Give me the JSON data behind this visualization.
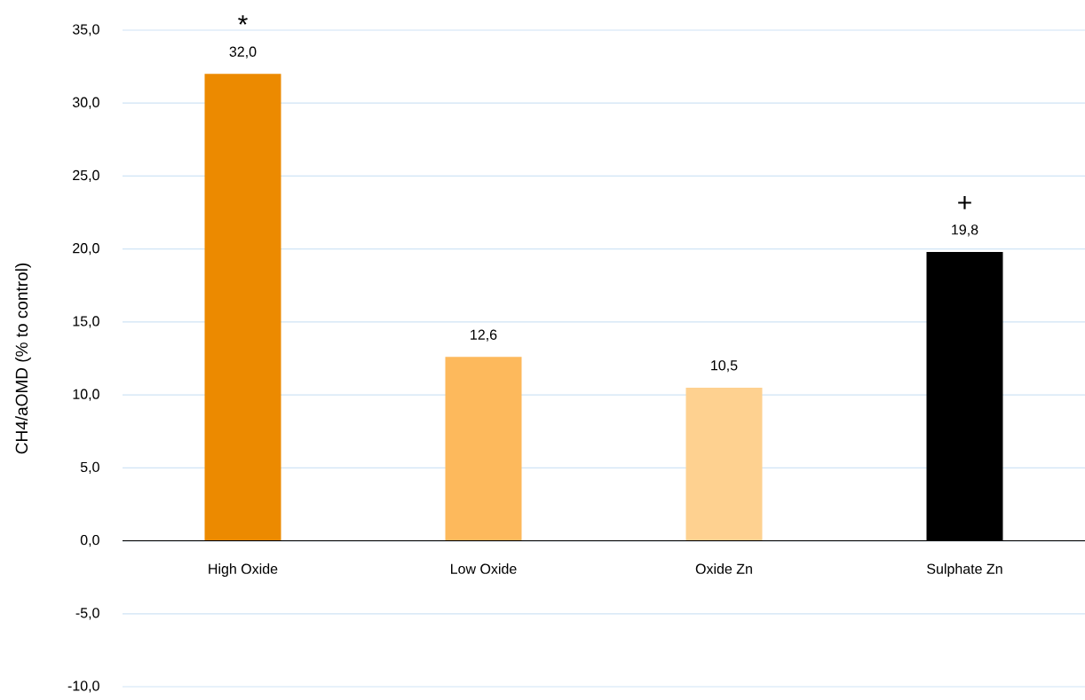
{
  "chart_data": {
    "type": "bar",
    "ylabel": "CH4/aOMD (% to control)",
    "categories": [
      "High Oxide",
      "Low Oxide",
      "Oxide Zn",
      "Sulphate Zn"
    ],
    "values": [
      32.0,
      12.6,
      10.5,
      19.8
    ],
    "colors": [
      "#ec8a00",
      "#fdb95c",
      "#fed190",
      "#000000"
    ],
    "value_labels": [
      "32,0",
      "12,6",
      "10,5",
      "19,8"
    ],
    "ylim": [
      -10,
      35
    ],
    "yticks": [
      {
        "value": -10,
        "label": "-10,0"
      },
      {
        "value": -5,
        "label": "-5,0"
      },
      {
        "value": 0,
        "label": "0,0"
      },
      {
        "value": 5,
        "label": "5,0"
      },
      {
        "value": 10,
        "label": "10,0"
      },
      {
        "value": 15,
        "label": "15,0"
      },
      {
        "value": 20,
        "label": "20,0"
      },
      {
        "value": 25,
        "label": "25,0"
      },
      {
        "value": 30,
        "label": "30,0"
      },
      {
        "value": 35,
        "label": "35,0"
      }
    ],
    "grid": "y",
    "annotations": [
      "*",
      "+"
    ]
  }
}
